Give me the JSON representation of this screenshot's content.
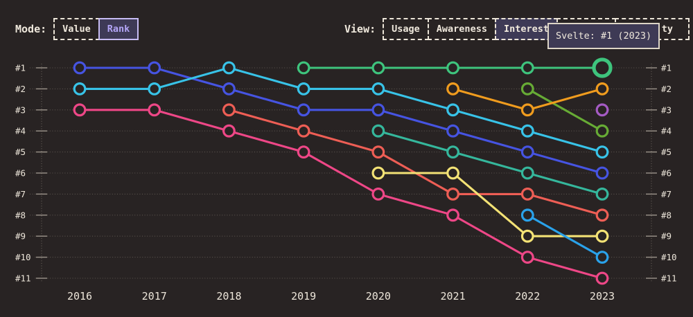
{
  "colors": {
    "background": "#282323",
    "text": "#f0e9dd",
    "accent_purple": "#b3a5f6",
    "panel_purple": "#3e3a56",
    "gridline": "#5d5650",
    "tick": "#9c948b"
  },
  "mode": {
    "label": "Mode:",
    "options": [
      {
        "label": "Value",
        "selected": false
      },
      {
        "label": "Rank",
        "selected": true
      }
    ]
  },
  "view": {
    "label": "View:",
    "options": [
      {
        "label": "Usage",
        "selected": false
      },
      {
        "label": "Awareness",
        "selected": false
      },
      {
        "label": "Interest",
        "selected": true
      },
      {
        "label": "",
        "selected": false
      },
      {
        "label": "ty",
        "selected": false
      }
    ]
  },
  "tooltip": {
    "text": "Svelte: #1 (2023)"
  },
  "chart_data": {
    "type": "line",
    "variant": "bump-chart-of-ranks",
    "x": [
      2016,
      2017,
      2018,
      2019,
      2020,
      2021,
      2022,
      2023
    ],
    "x_labels": [
      "2016",
      "2017",
      "2018",
      "2019",
      "2020",
      "2021",
      "2022",
      "2023"
    ],
    "rank_labels": [
      "#1",
      "#2",
      "#3",
      "#4",
      "#5",
      "#6",
      "#7",
      "#8",
      "#9",
      "#10",
      "#11"
    ],
    "ylim": [
      1,
      11
    ],
    "grid": "dotted horizontal line per rank, dotted vertical axis lines left and right",
    "legend": "none",
    "series": [
      {
        "name": "blue",
        "color": "#4654e2",
        "ranks": [
          1,
          1,
          2,
          3,
          3,
          4,
          5,
          6
        ]
      },
      {
        "name": "cyan",
        "color": "#38c3e8",
        "ranks": [
          2,
          2,
          1,
          2,
          2,
          3,
          4,
          5
        ]
      },
      {
        "name": "pink",
        "color": "#ee4787",
        "ranks": [
          3,
          3,
          4,
          5,
          7,
          8,
          10,
          11
        ]
      },
      {
        "name": "red",
        "color": "#ee5e55",
        "ranks": [
          null,
          null,
          3,
          4,
          5,
          7,
          7,
          8
        ]
      },
      {
        "name": "Svelte",
        "color": "#3ec47d",
        "ranks": [
          null,
          null,
          null,
          1,
          1,
          1,
          1,
          1
        ]
      },
      {
        "name": "teal",
        "color": "#35b79c",
        "ranks": [
          null,
          null,
          null,
          null,
          4,
          5,
          6,
          7
        ]
      },
      {
        "name": "yellow",
        "color": "#f3e275",
        "ranks": [
          null,
          null,
          null,
          null,
          6,
          6,
          9,
          9
        ]
      },
      {
        "name": "lime",
        "color": "#67ab35",
        "ranks": [
          null,
          null,
          null,
          null,
          null,
          null,
          2,
          4
        ]
      },
      {
        "name": "orange",
        "color": "#f09c1e",
        "ranks": [
          null,
          null,
          null,
          null,
          null,
          2,
          3,
          2
        ]
      },
      {
        "name": "sky",
        "color": "#2aa2ea",
        "ranks": [
          null,
          null,
          null,
          null,
          null,
          null,
          8,
          10
        ]
      },
      {
        "name": "purple",
        "color": "#a55bc4",
        "ranks": [
          null,
          null,
          null,
          null,
          null,
          null,
          null,
          3
        ]
      }
    ],
    "highlight": {
      "series": "Svelte",
      "year": 2023,
      "rank": 1
    }
  }
}
